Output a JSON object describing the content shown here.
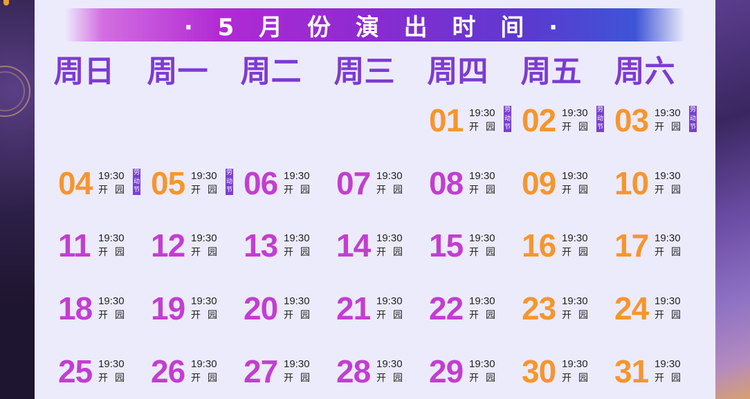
{
  "title": "· 5 月 份 演 出 时 间 ·",
  "weekdays": [
    "周日",
    "周一",
    "周二",
    "周三",
    "周四",
    "周五",
    "周六"
  ],
  "colors": {
    "orange": "#f5962e",
    "magenta": "#c23ed0",
    "weekday": "#7d3bd1",
    "holiday_badge": "#7a3fd4"
  },
  "time_label": "19:30",
  "park_label": "开 园",
  "holiday_label": "劳动节",
  "days": [
    {
      "day": "01",
      "col": 4,
      "row": 0,
      "color": "orange",
      "holiday": true
    },
    {
      "day": "02",
      "col": 5,
      "row": 0,
      "color": "orange",
      "holiday": true
    },
    {
      "day": "03",
      "col": 6,
      "row": 0,
      "color": "orange",
      "holiday": true
    },
    {
      "day": "04",
      "col": 0,
      "row": 1,
      "color": "orange",
      "holiday": true
    },
    {
      "day": "05",
      "col": 1,
      "row": 1,
      "color": "orange",
      "holiday": true
    },
    {
      "day": "06",
      "col": 2,
      "row": 1,
      "color": "magenta",
      "holiday": false
    },
    {
      "day": "07",
      "col": 3,
      "row": 1,
      "color": "magenta",
      "holiday": false
    },
    {
      "day": "08",
      "col": 4,
      "row": 1,
      "color": "magenta",
      "holiday": false
    },
    {
      "day": "09",
      "col": 5,
      "row": 1,
      "color": "orange",
      "holiday": false
    },
    {
      "day": "10",
      "col": 6,
      "row": 1,
      "color": "orange",
      "holiday": false
    },
    {
      "day": "11",
      "col": 0,
      "row": 2,
      "color": "magenta",
      "holiday": false
    },
    {
      "day": "12",
      "col": 1,
      "row": 2,
      "color": "magenta",
      "holiday": false
    },
    {
      "day": "13",
      "col": 2,
      "row": 2,
      "color": "magenta",
      "holiday": false
    },
    {
      "day": "14",
      "col": 3,
      "row": 2,
      "color": "magenta",
      "holiday": false
    },
    {
      "day": "15",
      "col": 4,
      "row": 2,
      "color": "magenta",
      "holiday": false
    },
    {
      "day": "16",
      "col": 5,
      "row": 2,
      "color": "orange",
      "holiday": false
    },
    {
      "day": "17",
      "col": 6,
      "row": 2,
      "color": "orange",
      "holiday": false
    },
    {
      "day": "18",
      "col": 0,
      "row": 3,
      "color": "magenta",
      "holiday": false
    },
    {
      "day": "19",
      "col": 1,
      "row": 3,
      "color": "magenta",
      "holiday": false
    },
    {
      "day": "20",
      "col": 2,
      "row": 3,
      "color": "magenta",
      "holiday": false
    },
    {
      "day": "21",
      "col": 3,
      "row": 3,
      "color": "magenta",
      "holiday": false
    },
    {
      "day": "22",
      "col": 4,
      "row": 3,
      "color": "magenta",
      "holiday": false
    },
    {
      "day": "23",
      "col": 5,
      "row": 3,
      "color": "orange",
      "holiday": false
    },
    {
      "day": "24",
      "col": 6,
      "row": 3,
      "color": "orange",
      "holiday": false
    },
    {
      "day": "25",
      "col": 0,
      "row": 4,
      "color": "magenta",
      "holiday": false
    },
    {
      "day": "26",
      "col": 1,
      "row": 4,
      "color": "magenta",
      "holiday": false
    },
    {
      "day": "27",
      "col": 2,
      "row": 4,
      "color": "magenta",
      "holiday": false
    },
    {
      "day": "28",
      "col": 3,
      "row": 4,
      "color": "magenta",
      "holiday": false
    },
    {
      "day": "29",
      "col": 4,
      "row": 4,
      "color": "magenta",
      "holiday": false
    },
    {
      "day": "30",
      "col": 5,
      "row": 4,
      "color": "orange",
      "holiday": false
    },
    {
      "day": "31",
      "col": 6,
      "row": 4,
      "color": "orange",
      "holiday": false
    }
  ]
}
